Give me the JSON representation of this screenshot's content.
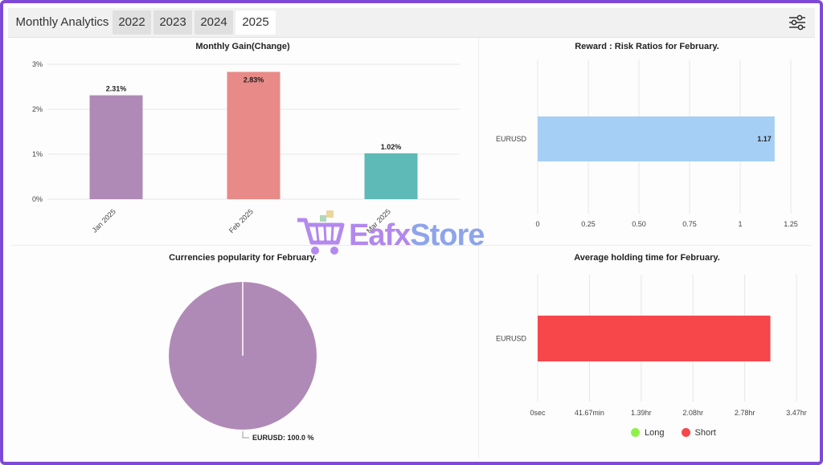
{
  "tabs": {
    "title": "Monthly Analytics",
    "years": [
      "2022",
      "2023",
      "2024",
      "2025"
    ],
    "active_year": "2025"
  },
  "icons": {
    "settings": "sliders-icon"
  },
  "colors": {
    "jan": "#b08ab6",
    "feb": "#e88a87",
    "mar": "#5dbab6",
    "reward_bar": "#a6cff5",
    "holding_bar": "#f7474b",
    "pie": "#b08ab6",
    "legend_long": "#8ff04b",
    "legend_short": "#f7474b",
    "frame": "#7e49d6"
  },
  "chart_data": [
    {
      "type": "bar",
      "title": "Monthly Gain(Change)",
      "categories": [
        "Jan 2025",
        "Feb 2025",
        "Mar 2025"
      ],
      "values": [
        2.31,
        2.83,
        1.02
      ],
      "data_labels": [
        "2.31%",
        "2.83%",
        "1.02%"
      ],
      "yticks": [
        "0%",
        "1%",
        "2%",
        "3%"
      ],
      "ylim": [
        0,
        3
      ],
      "grid": true
    },
    {
      "type": "bar",
      "orientation": "horizontal",
      "title": "Reward : Risk Ratios for February.",
      "categories": [
        "EURUSD"
      ],
      "values": [
        1.17
      ],
      "data_labels": [
        "1.17"
      ],
      "xticks": [
        "0",
        "0.25",
        "0.50",
        "0.75",
        "1",
        "1.25"
      ],
      "xlim": [
        0,
        1.25
      ],
      "grid": true
    },
    {
      "type": "pie",
      "title": "Currencies popularity for February.",
      "labels": [
        "EURUSD"
      ],
      "values": [
        100.0
      ],
      "data_labels": [
        "EURUSD: 100.0 %"
      ]
    },
    {
      "type": "bar",
      "orientation": "horizontal",
      "title": "Average holding time for February.",
      "categories": [
        "EURUSD"
      ],
      "series": [
        {
          "name": "Long",
          "values": [
            0
          ]
        },
        {
          "name": "Short",
          "values": [
            3.12
          ]
        }
      ],
      "xticks": [
        "0sec",
        "41.67min",
        "1.39hr",
        "2.08hr",
        "2.78hr",
        "3.47hr"
      ],
      "xlim": [
        0,
        3.47
      ],
      "x_unit": "hr",
      "legend": "bottom",
      "grid": true
    }
  ],
  "watermark": {
    "part1": "Eafx",
    "part2": "Store"
  }
}
